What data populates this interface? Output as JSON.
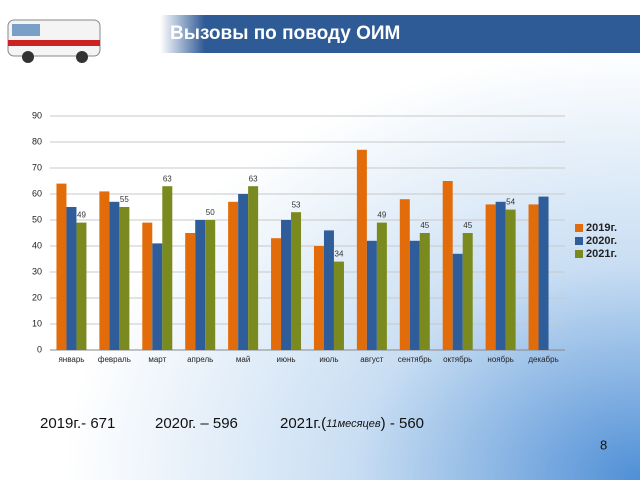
{
  "header": {
    "title": "Вызовы по поводу ОИМ"
  },
  "chart_data": {
    "type": "bar",
    "categories": [
      "январь",
      "февраль",
      "март",
      "апрель",
      "май",
      "июнь",
      "июль",
      "август",
      "сентябрь",
      "октябрь",
      "ноябрь",
      "декабрь"
    ],
    "series": [
      {
        "name": "2019г.",
        "color": "#e36c0a",
        "values": [
          64,
          61,
          49,
          45,
          57,
          43,
          40,
          77,
          58,
          65,
          56,
          56
        ]
      },
      {
        "name": "2020г.",
        "color": "#2f5d9a",
        "values": [
          55,
          57,
          41,
          50,
          60,
          50,
          46,
          42,
          42,
          37,
          57,
          59
        ]
      },
      {
        "name": "2021г.",
        "color": "#7a8a1e",
        "values": [
          49,
          55,
          63,
          50,
          63,
          53,
          34,
          49,
          45,
          45,
          54,
          null
        ],
        "show_value_labels": true
      }
    ],
    "ylim": [
      0,
      90
    ],
    "yticks": [
      0,
      10,
      20,
      30,
      40,
      50,
      60,
      70,
      80,
      90
    ],
    "grid": true,
    "legend": "right"
  },
  "summary": [
    "2019г.- 671",
    "2020г. – 596"
  ],
  "summary_2021": {
    "before": "2021г.(",
    "note": "11месяцев",
    "after": ") - 560"
  },
  "page_number": "8"
}
